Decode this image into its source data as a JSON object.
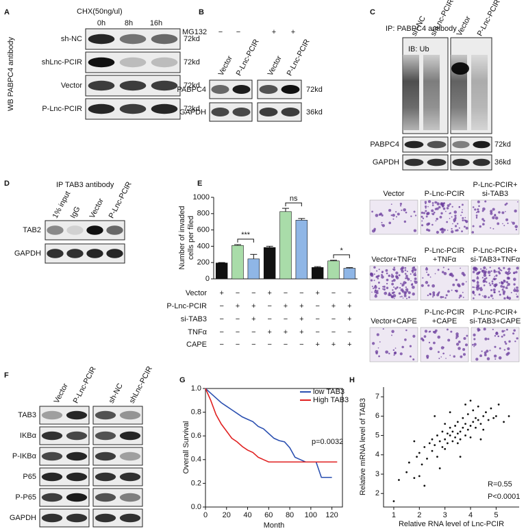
{
  "letters": [
    "A",
    "B",
    "C",
    "D",
    "E",
    "F",
    "G",
    "H"
  ],
  "panels": {
    "A": {
      "treatment": "CHX(50ng/ul)",
      "lanes": [
        "0h",
        "8h",
        "16h"
      ],
      "rows": [
        "sh-NC",
        "shLnc-PCIR",
        "Vector",
        "P-Lnc-PCIR"
      ],
      "sizes": [
        "72kd",
        "72kd",
        "72kd",
        "72kd"
      ],
      "antibody": "WB PABPC4 antibody"
    },
    "B": {
      "treatment": "MG132",
      "treatment_signs": [
        "−",
        "−",
        "+",
        "+"
      ],
      "lanes": [
        "Vector",
        "P-Lnc-PCIR",
        "Vector",
        "P-Lnc-PCIR"
      ],
      "rows": [
        "PABPC4",
        "GAPDH"
      ],
      "sizes": [
        "72kd",
        "36kd"
      ]
    },
    "C": {
      "ip": "IP: PABPC4 antibody",
      "ib": "IB: Ub",
      "lanes": [
        "sh-NC",
        "shLnc-PCIR",
        "Vector",
        "P-Lnc-PCIR"
      ],
      "rows": [
        "PABPC4",
        "GAPDH"
      ],
      "sizes": [
        "72kd",
        "36kd"
      ]
    },
    "D": {
      "ip": "IP TAB3 antibody",
      "lanes": [
        "1% input",
        "IgG",
        "Vector",
        "P-Lnc-PCIR"
      ],
      "rows": [
        "TAB2",
        "GAPDH"
      ]
    },
    "E": {
      "images": [
        [
          "Vector"
        ],
        [
          "P-Lnc-PCIR"
        ],
        [
          "P-Lnc-PCIR+",
          "si-TAB3"
        ],
        [
          "Vector+TNFα"
        ],
        [
          "P-Lnc-PCIR",
          "+TNFα"
        ],
        [
          "P-Lnc-PCIR+",
          "si-TAB3+TNFα"
        ],
        [
          "Vector+CAPE"
        ],
        [
          "P-Lnc-PCIR",
          "+CAPE"
        ],
        [
          "P-Lnc-PCIR+",
          "si-TAB3+CAPE"
        ]
      ]
    },
    "F": {
      "lanes": [
        "Vector",
        "P-Lnc-PCIR",
        "sh-NC",
        "shLnc-PCIR"
      ],
      "rows": [
        "TAB3",
        "IKBα",
        "P-IKBα",
        "P65",
        "P-P65",
        "GAPDH"
      ]
    }
  },
  "chart_data": [
    {
      "type": "bar",
      "ylabel": [
        "Number of invaded",
        "cells per filed"
      ],
      "categories": [
        null,
        null,
        null,
        null,
        null,
        null,
        null,
        null,
        null
      ],
      "values": [
        195,
        410,
        245,
        385,
        825,
        720,
        140,
        220,
        130
      ],
      "errors": [
        5,
        10,
        55,
        15,
        40,
        20,
        10,
        8,
        8
      ],
      "colors": [
        "#111111",
        "#a9dca9",
        "#8fb6e6",
        "#111111",
        "#a9dca9",
        "#8fb6e6",
        "#111111",
        "#a9dca9",
        "#8fb6e6"
      ],
      "ylim": [
        0,
        1000
      ],
      "yticks": [
        0,
        200,
        400,
        600,
        800,
        1000
      ],
      "annotations": [
        "***",
        "ns",
        "*"
      ],
      "conditions": {
        "rows": [
          "Vector",
          "P-Lnc-PCIR",
          "si-TAB3",
          "TNFα",
          "CAPE"
        ],
        "signs": [
          [
            "+",
            "−",
            "−",
            "+",
            "−",
            "−",
            "+",
            "−",
            "−"
          ],
          [
            "−",
            "+",
            "+",
            "−",
            "+",
            "+",
            "−",
            "+",
            "+"
          ],
          [
            "−",
            "−",
            "+",
            "−",
            "−",
            "+",
            "−",
            "−",
            "+"
          ],
          [
            "−",
            "−",
            "−",
            "+",
            "+",
            "+",
            "−",
            "−",
            "−"
          ],
          [
            "−",
            "−",
            "−",
            "−",
            "−",
            "−",
            "+",
            "+",
            "+"
          ]
        ]
      }
    },
    {
      "type": "line",
      "xlabel": "Month",
      "ylabel": "Overall Survival",
      "annotation": "p=0.0032",
      "legend": "upper right",
      "xlim": [
        0,
        130
      ],
      "xticks": [
        0,
        20,
        40,
        60,
        80,
        100,
        120
      ],
      "ylim": [
        0,
        1
      ],
      "yticks": [
        {
          "value": 0,
          "label": "0.0"
        },
        0.2,
        0.4,
        0.6,
        0.8,
        {
          "value": 1,
          "label": "1.0"
        }
      ],
      "series": [
        {
          "name": "low TAB3",
          "color": "#2a4fb0",
          "x": [
            0,
            5,
            10,
            15,
            20,
            25,
            30,
            35,
            40,
            45,
            50,
            55,
            60,
            65,
            70,
            75,
            80,
            85,
            90,
            95,
            100,
            105,
            110,
            115,
            120
          ],
          "values": [
            1.0,
            0.96,
            0.92,
            0.88,
            0.85,
            0.82,
            0.79,
            0.76,
            0.74,
            0.72,
            0.68,
            0.66,
            0.62,
            0.58,
            0.56,
            0.55,
            0.5,
            0.42,
            0.4,
            0.38,
            0.38,
            0.38,
            0.25,
            0.25,
            0.25
          ]
        },
        {
          "name": "High TAB3",
          "color": "#e02020",
          "x": [
            0,
            5,
            10,
            15,
            20,
            25,
            30,
            35,
            40,
            45,
            50,
            55,
            60,
            65,
            70,
            80,
            90,
            100,
            110,
            120,
            125
          ],
          "values": [
            1.0,
            0.9,
            0.78,
            0.7,
            0.64,
            0.58,
            0.55,
            0.51,
            0.48,
            0.46,
            0.42,
            0.4,
            0.38,
            0.38,
            0.38,
            0.38,
            0.38,
            0.38,
            0.38,
            0.38,
            0.38
          ]
        }
      ]
    },
    {
      "type": "scatter",
      "xlabel": "Relative RNA level of Lnc-PCIR",
      "ylabel": "Relative mRNA level of TAB3",
      "annotations": [
        "R=0.55",
        "P<0.0001"
      ],
      "color": "#111111",
      "xlim": [
        0.6,
        5.9
      ],
      "xticks": [
        1,
        2,
        3,
        4,
        5
      ],
      "ylim": [
        1.3,
        7.5
      ],
      "yticks": [
        2,
        3,
        4,
        5,
        6,
        7
      ],
      "x": [
        1.0,
        1.2,
        1.5,
        1.6,
        1.8,
        1.9,
        2.0,
        2.1,
        2.2,
        2.3,
        2.4,
        2.5,
        2.5,
        2.6,
        2.7,
        2.7,
        2.8,
        2.9,
        2.9,
        3.0,
        3.0,
        3.1,
        3.1,
        3.2,
        3.2,
        3.3,
        3.3,
        3.4,
        3.4,
        3.5,
        3.5,
        3.5,
        3.6,
        3.6,
        3.7,
        3.7,
        3.8,
        3.8,
        3.9,
        3.9,
        4.0,
        4.0,
        4.1,
        4.1,
        4.2,
        4.2,
        4.3,
        4.3,
        4.4,
        4.5,
        4.5,
        4.6,
        4.7,
        4.8,
        4.9,
        5.0,
        5.1,
        5.3,
        5.5,
        2.2,
        2.8,
        3.2,
        3.6,
        4.0,
        3.0,
        2.0,
        1.8,
        4.4,
        3.8,
        2.6
      ],
      "values": [
        1.6,
        2.7,
        3.1,
        3.6,
        2.8,
        3.9,
        4.1,
        3.5,
        4.4,
        3.8,
        4.6,
        4.2,
        4.8,
        4.5,
        3.9,
        5.0,
        4.7,
        4.4,
        5.2,
        4.8,
        4.3,
        5.1,
        4.6,
        5.0,
        5.4,
        4.7,
        5.2,
        4.9,
        5.5,
        5.1,
        4.6,
        5.7,
        5.2,
        4.8,
        5.4,
        5.9,
        5.0,
        5.6,
        5.3,
        6.1,
        5.5,
        4.9,
        5.7,
        6.3,
        5.4,
        5.9,
        5.8,
        6.5,
        5.6,
        6.0,
        5.3,
        6.2,
        5.8,
        6.4,
        5.9,
        6.0,
        6.6,
        5.7,
        6.0,
        2.4,
        3.3,
        6.2,
        3.9,
        6.8,
        5.6,
        2.9,
        4.7,
        4.8,
        6.6,
        6.0
      ]
    }
  ]
}
